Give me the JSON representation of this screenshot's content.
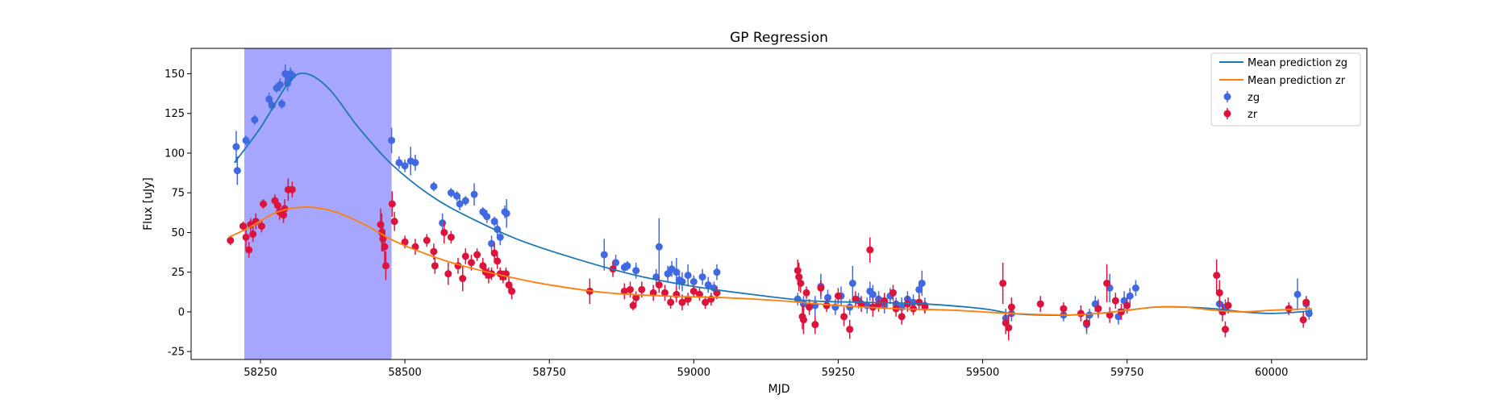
{
  "chart_data": {
    "type": "scatter",
    "title": "GP Regression",
    "xlabel": "MJD",
    "ylabel": "Flux [uJy]",
    "xlim": [
      58130,
      60165
    ],
    "ylim": [
      -30,
      166
    ],
    "x_ticks": [
      58250,
      58500,
      58750,
      59000,
      59250,
      59500,
      59750,
      60000
    ],
    "y_ticks": [
      -25,
      0,
      25,
      50,
      75,
      100,
      125,
      150
    ],
    "grid": false,
    "legend": {
      "position": "top-right",
      "entries": [
        "Mean prediction zg",
        "Mean prediction zr",
        "zg",
        "zr"
      ]
    },
    "highlight_span": {
      "x_start": 58222,
      "x_end": 58477,
      "color": "#a6a6ff"
    },
    "colors": {
      "zg_points": "#4169e1",
      "zr_points": "#dc143c",
      "zg_line": "#1f77b4",
      "zr_line": "#ff7f0e"
    },
    "series": [
      {
        "name": "Mean prediction zg",
        "kind": "line",
        "x": [
          58205,
          58250,
          58300,
          58330,
          58370,
          58420,
          58480,
          58550,
          58620,
          58700,
          58800,
          58900,
          59000,
          59100,
          59200,
          59300,
          59400,
          59500,
          59550,
          59600,
          59650,
          59700,
          59750,
          59800,
          59850,
          59900,
          59950,
          60000,
          60050,
          60070
        ],
        "y": [
          94,
          116,
          145,
          150,
          140,
          116,
          92,
          72,
          58,
          45,
          33,
          23,
          16,
          11,
          7,
          6,
          5,
          2,
          -1,
          -2,
          -2,
          -1,
          1,
          3,
          3,
          2,
          0,
          -1,
          0,
          1
        ]
      },
      {
        "name": "Mean prediction zr",
        "kind": "line",
        "x": [
          58195,
          58230,
          58280,
          58330,
          58380,
          58430,
          58480,
          58540,
          58600,
          58680,
          58750,
          58850,
          58950,
          59050,
          59150,
          59250,
          59350,
          59450,
          59550,
          59650,
          59700,
          59750,
          59800,
          59850,
          59900,
          59950,
          60000,
          60070
        ],
        "y": [
          47,
          53,
          63,
          66,
          63,
          55,
          45,
          36,
          29,
          22,
          17,
          12,
          10,
          9,
          7,
          4,
          2,
          1,
          -1,
          -2,
          -1,
          1,
          3,
          3,
          1,
          0,
          1,
          2
        ]
      },
      {
        "name": "zg",
        "kind": "errorbar",
        "points": [
          [
            58208,
            104,
            10
          ],
          [
            58210,
            89,
            9
          ],
          [
            58225,
            108,
            3
          ],
          [
            58240,
            121,
            3
          ],
          [
            58265,
            134,
            4
          ],
          [
            58270,
            130,
            3
          ],
          [
            58278,
            141,
            3
          ],
          [
            58284,
            143,
            4
          ],
          [
            58287,
            131,
            3
          ],
          [
            58293,
            150,
            6
          ],
          [
            58297,
            144,
            5
          ],
          [
            58300,
            147,
            4
          ],
          [
            58302,
            150,
            4
          ],
          [
            58305,
            149,
            3
          ],
          [
            58477,
            108,
            8
          ],
          [
            58490,
            94,
            4
          ],
          [
            58500,
            92,
            4
          ],
          [
            58510,
            95,
            9
          ],
          [
            58518,
            94,
            5
          ],
          [
            58550,
            79,
            3
          ],
          [
            58565,
            56,
            6
          ],
          [
            58580,
            75,
            3
          ],
          [
            58590,
            73,
            3
          ],
          [
            58595,
            68,
            4
          ],
          [
            58605,
            70,
            3
          ],
          [
            58620,
            74,
            7
          ],
          [
            58635,
            63,
            3
          ],
          [
            58642,
            60,
            4
          ],
          [
            58650,
            43,
            5
          ],
          [
            58655,
            57,
            3
          ],
          [
            58660,
            52,
            6
          ],
          [
            58665,
            47,
            5
          ],
          [
            58673,
            63,
            4
          ],
          [
            58676,
            62,
            9
          ],
          [
            58845,
            36,
            10
          ],
          [
            58865,
            31,
            5
          ],
          [
            58880,
            28,
            3
          ],
          [
            58885,
            29,
            3
          ],
          [
            58900,
            26,
            5
          ],
          [
            58935,
            22,
            5
          ],
          [
            58940,
            41,
            18
          ],
          [
            58955,
            24,
            5
          ],
          [
            58962,
            27,
            5
          ],
          [
            58970,
            25,
            9
          ],
          [
            58975,
            20,
            6
          ],
          [
            58980,
            19,
            6
          ],
          [
            58990,
            23,
            7
          ],
          [
            59000,
            19,
            4
          ],
          [
            59015,
            22,
            5
          ],
          [
            59025,
            17,
            5
          ],
          [
            59035,
            15,
            4
          ],
          [
            59040,
            25,
            5
          ],
          [
            59180,
            8,
            4
          ],
          [
            59190,
            5,
            5
          ],
          [
            59210,
            4,
            6
          ],
          [
            59220,
            16,
            8
          ],
          [
            59232,
            9,
            5
          ],
          [
            59245,
            3,
            5
          ],
          [
            59255,
            10,
            6
          ],
          [
            59270,
            3,
            5
          ],
          [
            59275,
            18,
            11
          ],
          [
            59285,
            7,
            5
          ],
          [
            59300,
            4,
            5
          ],
          [
            59305,
            13,
            6
          ],
          [
            59310,
            11,
            6
          ],
          [
            59320,
            8,
            5
          ],
          [
            59330,
            4,
            5
          ],
          [
            59340,
            10,
            5
          ],
          [
            59350,
            5,
            4
          ],
          [
            59360,
            3,
            6
          ],
          [
            59370,
            8,
            5
          ],
          [
            59380,
            6,
            5
          ],
          [
            59390,
            14,
            5
          ],
          [
            59395,
            18,
            8
          ],
          [
            59400,
            4,
            5
          ],
          [
            59540,
            -4,
            6
          ],
          [
            59550,
            -1,
            5
          ],
          [
            59640,
            -2,
            4
          ],
          [
            59680,
            -8,
            6
          ],
          [
            59685,
            -2,
            4
          ],
          [
            59695,
            5,
            5
          ],
          [
            59700,
            2,
            6
          ],
          [
            59720,
            15,
            9
          ],
          [
            59735,
            -3,
            5
          ],
          [
            59745,
            7,
            6
          ],
          [
            59755,
            10,
            5
          ],
          [
            59765,
            15,
            5
          ],
          [
            59910,
            5,
            6
          ],
          [
            59920,
            3,
            5
          ],
          [
            60045,
            11,
            10
          ],
          [
            60060,
            5,
            4
          ],
          [
            60065,
            -1,
            4
          ]
        ]
      },
      {
        "name": "zr",
        "kind": "errorbar",
        "points": [
          [
            58198,
            45,
            3
          ],
          [
            58220,
            54,
            3
          ],
          [
            58225,
            47,
            7
          ],
          [
            58230,
            39,
            5
          ],
          [
            58233,
            55,
            4
          ],
          [
            58237,
            49,
            5
          ],
          [
            58242,
            57,
            5
          ],
          [
            58252,
            54,
            4
          ],
          [
            58255,
            68,
            3
          ],
          [
            58275,
            70,
            4
          ],
          [
            58280,
            67,
            4
          ],
          [
            58283,
            63,
            5
          ],
          [
            58290,
            61,
            5
          ],
          [
            58292,
            65,
            6
          ],
          [
            58298,
            77,
            7
          ],
          [
            58305,
            77,
            5
          ],
          [
            58458,
            55,
            10
          ],
          [
            58460,
            50,
            12
          ],
          [
            58462,
            46,
            8
          ],
          [
            58465,
            41,
            11
          ],
          [
            58467,
            29,
            9
          ],
          [
            58478,
            68,
            8
          ],
          [
            58482,
            57,
            6
          ],
          [
            58500,
            44,
            4
          ],
          [
            58518,
            41,
            5
          ],
          [
            58538,
            45,
            4
          ],
          [
            58550,
            38,
            5
          ],
          [
            58552,
            29,
            5
          ],
          [
            58568,
            50,
            7
          ],
          [
            58575,
            24,
            7
          ],
          [
            58580,
            47,
            4
          ],
          [
            58592,
            29,
            5
          ],
          [
            58600,
            21,
            8
          ],
          [
            58605,
            35,
            5
          ],
          [
            58615,
            31,
            5
          ],
          [
            58625,
            36,
            4
          ],
          [
            58635,
            29,
            5
          ],
          [
            58640,
            25,
            4
          ],
          [
            58645,
            23,
            5
          ],
          [
            58650,
            24,
            4
          ],
          [
            58655,
            37,
            6
          ],
          [
            58660,
            32,
            5
          ],
          [
            58665,
            24,
            4
          ],
          [
            58670,
            22,
            4
          ],
          [
            58675,
            24,
            4
          ],
          [
            58680,
            17,
            5
          ],
          [
            58685,
            13,
            5
          ],
          [
            58820,
            13,
            8
          ],
          [
            58860,
            27,
            5
          ],
          [
            58880,
            13,
            5
          ],
          [
            58890,
            14,
            5
          ],
          [
            58895,
            4,
            3
          ],
          [
            58900,
            9,
            4
          ],
          [
            58910,
            14,
            5
          ],
          [
            58930,
            12,
            5
          ],
          [
            58940,
            17,
            5
          ],
          [
            58950,
            12,
            5
          ],
          [
            58960,
            6,
            4
          ],
          [
            58970,
            11,
            5
          ],
          [
            58980,
            6,
            5
          ],
          [
            58990,
            8,
            4
          ],
          [
            59000,
            13,
            4
          ],
          [
            59010,
            11,
            4
          ],
          [
            59020,
            6,
            4
          ],
          [
            59030,
            8,
            4
          ],
          [
            59040,
            12,
            4
          ],
          [
            59180,
            26,
            7
          ],
          [
            59182,
            22,
            9
          ],
          [
            59185,
            18,
            6
          ],
          [
            59188,
            -3,
            8
          ],
          [
            59190,
            -5,
            9
          ],
          [
            59195,
            12,
            4
          ],
          [
            59200,
            3,
            5
          ],
          [
            59210,
            -8,
            6
          ],
          [
            59220,
            15,
            5
          ],
          [
            59230,
            4,
            4
          ],
          [
            59250,
            10,
            5
          ],
          [
            59260,
            -3,
            6
          ],
          [
            59270,
            -11,
            6
          ],
          [
            59280,
            8,
            5
          ],
          [
            59290,
            5,
            5
          ],
          [
            59305,
            39,
            8
          ],
          [
            59310,
            3,
            6
          ],
          [
            59320,
            5,
            5
          ],
          [
            59330,
            7,
            5
          ],
          [
            59345,
            12,
            5
          ],
          [
            59350,
            2,
            5
          ],
          [
            59360,
            -3,
            5
          ],
          [
            59370,
            5,
            5
          ],
          [
            59380,
            2,
            4
          ],
          [
            59390,
            6,
            5
          ],
          [
            59400,
            3,
            4
          ],
          [
            59535,
            18,
            13
          ],
          [
            59540,
            -7,
            7
          ],
          [
            59545,
            -10,
            8
          ],
          [
            59550,
            3,
            6
          ],
          [
            59600,
            5,
            5
          ],
          [
            59640,
            2,
            4
          ],
          [
            59670,
            -1,
            5
          ],
          [
            59680,
            -7,
            5
          ],
          [
            59700,
            2,
            5
          ],
          [
            59715,
            18,
            12
          ],
          [
            59720,
            -2,
            5
          ],
          [
            59730,
            7,
            5
          ],
          [
            59740,
            0,
            5
          ],
          [
            59750,
            4,
            5
          ],
          [
            59905,
            23,
            10
          ],
          [
            59910,
            12,
            8
          ],
          [
            59915,
            0,
            6
          ],
          [
            59920,
            -11,
            5
          ],
          [
            59925,
            4,
            5
          ],
          [
            60030,
            2,
            4
          ],
          [
            60055,
            -5,
            5
          ],
          [
            60060,
            6,
            4
          ]
        ]
      }
    ]
  }
}
